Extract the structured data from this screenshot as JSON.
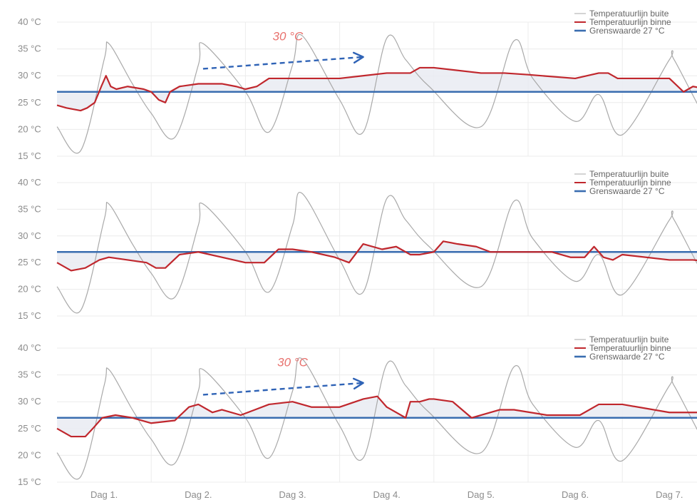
{
  "colors": {
    "outdoor": "#a9a9a9",
    "indoor": "#c0272d",
    "threshold": "#3a6db0",
    "grid": "#ececec",
    "shade": "#e9ebf2",
    "arrow": "#2f63b6",
    "annotation": "#e8716d"
  },
  "chart_data": [
    {
      "type": "line",
      "x_unit": "day",
      "ylim": [
        15,
        40
      ],
      "y_ticks": [
        "15 °C",
        "20 °C",
        "25 °C",
        "30 °C",
        "35 °C",
        "40 °C"
      ],
      "y_tick_values": [
        15,
        20,
        25,
        30,
        35,
        40
      ],
      "x_ticks": [],
      "x_tick_values": [
        0.5,
        1.5,
        2.5,
        3.5,
        4.5,
        5.5,
        6.5
      ],
      "grid": true,
      "legend": {
        "placement": "top-right",
        "entries": [
          "Temperatuurlijn buite",
          "Temperatuurlijn binne",
          "Grenswaarde 27 °C"
        ]
      },
      "annotation": {
        "text": "30 °C",
        "x": 2.45,
        "y": 36.6
      },
      "arrow": {
        "x1": 1.55,
        "y1": 31.3,
        "x2": 3.25,
        "y2": 33.5
      },
      "threshold": 27,
      "series": [
        {
          "name": "Temperatuurlijn buite",
          "x": [
            0,
            0.25,
            0.5,
            0.55,
            0.8,
            1.0,
            1.25,
            1.5,
            1.55,
            2.0,
            2.25,
            2.5,
            2.6,
            3.0,
            3.25,
            3.5,
            3.7,
            3.95,
            4.5,
            4.85,
            5.05,
            5.5,
            5.75,
            6.0,
            6.5,
            6.55,
            6.95,
            7.07
          ],
          "values": [
            20.5,
            16,
            33,
            36,
            28.5,
            23,
            18.5,
            32,
            36,
            27,
            19.5,
            32,
            37.5,
            25.5,
            19.5,
            37,
            33,
            28,
            20.5,
            36.5,
            29.5,
            21.5,
            26.5,
            19,
            33,
            33,
            20,
            20.5
          ]
        },
        {
          "name": "Temperatuurlijn binne",
          "x": [
            0,
            0.1,
            0.25,
            0.32,
            0.4,
            0.47,
            0.52,
            0.57,
            0.63,
            0.75,
            0.92,
            1.0,
            1.08,
            1.15,
            1.2,
            1.3,
            1.5,
            1.75,
            1.9,
            2.0,
            2.12,
            2.25,
            2.5,
            3.0,
            3.5,
            3.75,
            3.85,
            4.0,
            4.5,
            4.75,
            5.0,
            5.5,
            5.75,
            5.85,
            5.95,
            6.5,
            6.65,
            6.75,
            7.07
          ],
          "values": [
            24.5,
            24,
            23.5,
            24,
            25,
            28,
            30,
            28,
            27.5,
            28,
            27.5,
            27,
            25.5,
            25,
            27,
            28,
            28.5,
            28.5,
            28,
            27.5,
            28,
            29.5,
            29.5,
            29.5,
            30.5,
            30.5,
            31.5,
            31.5,
            30.5,
            30.5,
            30.2,
            29.5,
            30.5,
            30.5,
            29.5,
            29.5,
            27,
            28,
            27
          ]
        },
        {
          "name": "Grenswaarde 27 °C",
          "x": [
            0,
            7.07
          ],
          "values": [
            27,
            27
          ]
        }
      ]
    },
    {
      "type": "line",
      "x_unit": "day",
      "ylim": [
        15,
        40
      ],
      "y_ticks": [
        "15 °C",
        "20 °C",
        "25 °C",
        "30 °C",
        "35 °C",
        "40 °C"
      ],
      "y_tick_values": [
        15,
        20,
        25,
        30,
        35,
        40
      ],
      "x_ticks": [],
      "x_tick_values": [
        0.5,
        1.5,
        2.5,
        3.5,
        4.5,
        5.5,
        6.5
      ],
      "grid": true,
      "legend": {
        "placement": "top-right",
        "entries": [
          "Temperatuurlijn buite",
          "Temperatuurlijn binne",
          "Grenswaarde 27 °C"
        ]
      },
      "threshold": 27,
      "series": [
        {
          "name": "Temperatuurlijn buite",
          "x": [
            0,
            0.25,
            0.5,
            0.55,
            0.8,
            1.0,
            1.25,
            1.5,
            1.55,
            2.0,
            2.25,
            2.5,
            2.6,
            3.0,
            3.25,
            3.5,
            3.7,
            3.95,
            4.5,
            4.85,
            5.05,
            5.5,
            5.75,
            6.0,
            6.5,
            6.55,
            6.95,
            7.07
          ],
          "values": [
            20.5,
            16,
            33,
            36,
            28.5,
            23,
            18.5,
            32,
            36,
            27,
            19.5,
            32,
            38,
            25.5,
            19.5,
            37,
            33,
            28,
            20.5,
            36.5,
            29.5,
            21.5,
            26.5,
            19,
            33,
            33,
            20,
            20.5
          ]
        },
        {
          "name": "Temperatuurlijn binne",
          "x": [
            0,
            0.15,
            0.3,
            0.45,
            0.55,
            0.75,
            0.95,
            1.05,
            1.15,
            1.3,
            1.5,
            1.75,
            2.0,
            2.2,
            2.35,
            2.5,
            2.7,
            2.95,
            3.1,
            3.25,
            3.45,
            3.6,
            3.75,
            3.85,
            4.0,
            4.1,
            4.25,
            4.45,
            4.6,
            4.75,
            5.0,
            5.25,
            5.45,
            5.6,
            5.7,
            5.8,
            5.9,
            6.0,
            6.5,
            6.75,
            7.07
          ],
          "values": [
            25,
            23.5,
            24,
            25.5,
            26,
            25.5,
            25,
            24,
            24,
            26.5,
            27,
            26,
            25,
            25,
            27.5,
            27.5,
            27,
            26,
            25,
            28.5,
            27.5,
            28,
            26.5,
            26.5,
            27,
            29,
            28.5,
            28,
            27,
            27,
            27,
            27,
            26,
            26,
            28,
            26,
            25.5,
            26.5,
            25.5,
            25.5,
            25
          ]
        },
        {
          "name": "Grenswaarde 27 °C",
          "x": [
            0,
            7.07
          ],
          "values": [
            27,
            27
          ]
        }
      ]
    },
    {
      "type": "line",
      "x_unit": "day",
      "ylim": [
        15,
        40
      ],
      "y_ticks": [
        "15 °C",
        "20 °C",
        "25 °C",
        "30 °C",
        "35 °C",
        "40 °C"
      ],
      "y_tick_values": [
        15,
        20,
        25,
        30,
        35,
        40
      ],
      "x_ticks": [
        "Dag 1.",
        "Dag 2.",
        "Dag 3.",
        "Dag 4.",
        "Dag 5.",
        "Dag 6.",
        "Dag 7."
      ],
      "x_tick_values": [
        0.5,
        1.5,
        2.5,
        3.5,
        4.5,
        5.5,
        6.5
      ],
      "grid": true,
      "legend": {
        "placement": "top-right",
        "entries": [
          "Temperatuurlijn buite",
          "Temperatuurlijn binne",
          "Grenswaarde 27 °C"
        ]
      },
      "annotation": {
        "text": "30 °C",
        "x": 2.5,
        "y": 36.6
      },
      "arrow": {
        "x1": 1.55,
        "y1": 31.3,
        "x2": 3.25,
        "y2": 33.5
      },
      "threshold": 27,
      "series": [
        {
          "name": "Temperatuurlijn buite",
          "x": [
            0,
            0.25,
            0.5,
            0.55,
            0.8,
            1.0,
            1.25,
            1.5,
            1.55,
            2.0,
            2.25,
            2.5,
            2.6,
            3.0,
            3.25,
            3.5,
            3.7,
            3.95,
            4.5,
            4.85,
            5.05,
            5.5,
            5.75,
            6.0,
            6.5,
            6.55,
            6.95,
            7.07
          ],
          "values": [
            20.5,
            16,
            33,
            36,
            28.5,
            23,
            18.5,
            32,
            36,
            27,
            19.5,
            32,
            38,
            25.5,
            19.5,
            37,
            33,
            28,
            20.5,
            36.5,
            29.5,
            21.5,
            26.5,
            19,
            33,
            33,
            20,
            20.5
          ]
        },
        {
          "name": "Temperatuurlijn binne",
          "x": [
            0,
            0.15,
            0.3,
            0.38,
            0.48,
            0.62,
            0.8,
            1.0,
            1.25,
            1.4,
            1.5,
            1.65,
            1.75,
            1.95,
            2.1,
            2.25,
            2.5,
            2.7,
            3.0,
            3.25,
            3.4,
            3.5,
            3.55,
            3.7,
            3.75,
            3.85,
            3.95,
            4.0,
            4.2,
            4.4,
            4.7,
            4.85,
            5.2,
            5.45,
            5.55,
            5.75,
            6.0,
            6.5,
            6.8,
            7.07
          ],
          "values": [
            25,
            23.5,
            23.5,
            25,
            27,
            27.5,
            27,
            26,
            26.5,
            29,
            29.5,
            28,
            28.5,
            27.5,
            28.5,
            29.5,
            30,
            29,
            29,
            30.5,
            31,
            29,
            28.5,
            27,
            30,
            30,
            30.5,
            30.5,
            30,
            27,
            28.5,
            28.5,
            27.5,
            27.5,
            27.5,
            29.5,
            29.5,
            28,
            28,
            26
          ]
        },
        {
          "name": "Grenswaarde 27 °C",
          "x": [
            0,
            7.07
          ],
          "values": [
            27,
            27
          ]
        }
      ]
    }
  ]
}
